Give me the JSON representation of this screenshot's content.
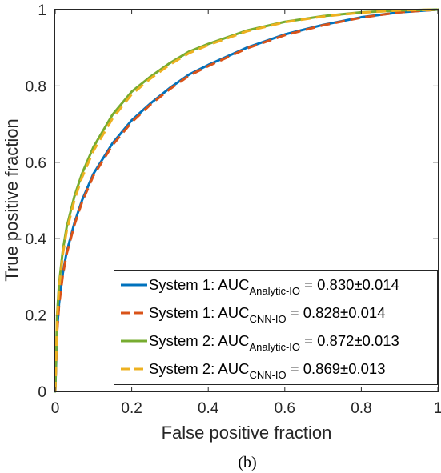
{
  "chart_data": {
    "type": "line",
    "title": "",
    "xlabel": "False positive fraction",
    "ylabel": "True positive fraction",
    "xlim": [
      0,
      1
    ],
    "ylim": [
      0,
      1
    ],
    "x_ticks": [
      "0",
      "0.2",
      "0.4",
      "0.6",
      "0.8",
      "1"
    ],
    "y_ticks": [
      "0",
      "0.2",
      "0.4",
      "0.6",
      "0.8",
      "1"
    ],
    "grid": false,
    "legend_position": "bottom-right",
    "caption": "(b)",
    "series": [
      {
        "legend_prefix": "System 1: AUC",
        "legend_subscript": "Analytic-IO",
        "legend_suffix": " = 0.830±0.014",
        "color": "#0072BD",
        "dashed": false,
        "points": [
          [
            0,
            0
          ],
          [
            0.005,
            0.16
          ],
          [
            0.01,
            0.23
          ],
          [
            0.02,
            0.31
          ],
          [
            0.03,
            0.365
          ],
          [
            0.05,
            0.44
          ],
          [
            0.07,
            0.5
          ],
          [
            0.1,
            0.57
          ],
          [
            0.15,
            0.65
          ],
          [
            0.2,
            0.71
          ],
          [
            0.25,
            0.755
          ],
          [
            0.3,
            0.795
          ],
          [
            0.35,
            0.83
          ],
          [
            0.4,
            0.855
          ],
          [
            0.5,
            0.9
          ],
          [
            0.6,
            0.935
          ],
          [
            0.7,
            0.96
          ],
          [
            0.8,
            0.98
          ],
          [
            0.9,
            0.993
          ],
          [
            1,
            1
          ]
        ]
      },
      {
        "legend_prefix": "System 1: AUC",
        "legend_subscript": "CNN-IO",
        "legend_suffix": " = 0.828±0.014",
        "color": "#D95319",
        "dashed": true,
        "points": [
          [
            0,
            0
          ],
          [
            0.005,
            0.155
          ],
          [
            0.01,
            0.225
          ],
          [
            0.02,
            0.305
          ],
          [
            0.03,
            0.36
          ],
          [
            0.05,
            0.435
          ],
          [
            0.07,
            0.495
          ],
          [
            0.1,
            0.565
          ],
          [
            0.15,
            0.645
          ],
          [
            0.2,
            0.705
          ],
          [
            0.25,
            0.752
          ],
          [
            0.3,
            0.792
          ],
          [
            0.35,
            0.827
          ],
          [
            0.4,
            0.852
          ],
          [
            0.5,
            0.898
          ],
          [
            0.6,
            0.933
          ],
          [
            0.7,
            0.959
          ],
          [
            0.8,
            0.979
          ],
          [
            0.9,
            0.993
          ],
          [
            1,
            1
          ]
        ]
      },
      {
        "legend_prefix": "System 2: AUC",
        "legend_subscript": "Analytic-IO",
        "legend_suffix": " = 0.872±0.013",
        "color": "#77AC30",
        "dashed": false,
        "points": [
          [
            0,
            0
          ],
          [
            0.005,
            0.2
          ],
          [
            0.01,
            0.28
          ],
          [
            0.02,
            0.37
          ],
          [
            0.03,
            0.43
          ],
          [
            0.05,
            0.51
          ],
          [
            0.07,
            0.57
          ],
          [
            0.1,
            0.64
          ],
          [
            0.15,
            0.725
          ],
          [
            0.2,
            0.785
          ],
          [
            0.25,
            0.825
          ],
          [
            0.3,
            0.86
          ],
          [
            0.35,
            0.89
          ],
          [
            0.4,
            0.91
          ],
          [
            0.5,
            0.945
          ],
          [
            0.6,
            0.968
          ],
          [
            0.7,
            0.983
          ],
          [
            0.8,
            0.993
          ],
          [
            0.9,
            0.998
          ],
          [
            1,
            1
          ]
        ]
      },
      {
        "legend_prefix": "System 2: AUC",
        "legend_subscript": "CNN-IO",
        "legend_suffix": " = 0.869±0.013",
        "color": "#EDB120",
        "dashed": true,
        "points": [
          [
            0,
            0
          ],
          [
            0.005,
            0.19
          ],
          [
            0.01,
            0.27
          ],
          [
            0.02,
            0.36
          ],
          [
            0.03,
            0.42
          ],
          [
            0.05,
            0.5
          ],
          [
            0.07,
            0.56
          ],
          [
            0.1,
            0.63
          ],
          [
            0.15,
            0.715
          ],
          [
            0.2,
            0.778
          ],
          [
            0.25,
            0.82
          ],
          [
            0.3,
            0.856
          ],
          [
            0.35,
            0.886
          ],
          [
            0.4,
            0.907
          ],
          [
            0.5,
            0.943
          ],
          [
            0.6,
            0.967
          ],
          [
            0.7,
            0.982
          ],
          [
            0.8,
            0.992
          ],
          [
            0.9,
            0.998
          ],
          [
            1,
            1
          ]
        ]
      }
    ]
  }
}
